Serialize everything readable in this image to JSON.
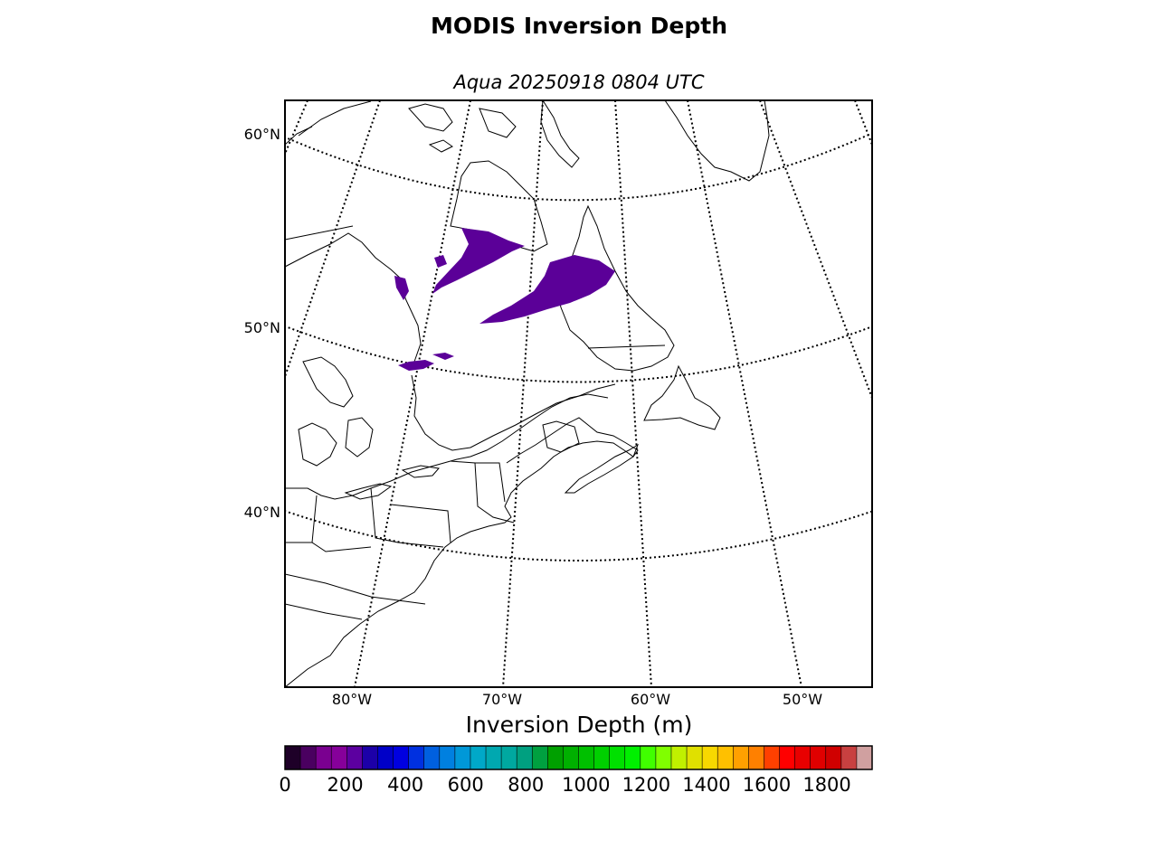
{
  "title": "MODIS Inversion Depth",
  "subtitle": "Aqua 20250918 0804 UTC",
  "map": {
    "lat_labels": [
      "60°N",
      "50°N",
      "40°N"
    ],
    "lon_labels": [
      "80°W",
      "70°W",
      "60°W",
      "50°W"
    ],
    "feature_color": "#5b0098"
  },
  "colorbar": {
    "label": "Inversion Depth (m)",
    "range": [
      0,
      1950
    ],
    "ticks": [
      "0",
      "200",
      "400",
      "600",
      "800",
      "1000",
      "1200",
      "1400",
      "1600",
      "1800"
    ],
    "colors": [
      "#1e0028",
      "#4a0060",
      "#7a0090",
      "#86009a",
      "#5c00a0",
      "#1c00a8",
      "#0000c8",
      "#0000e0",
      "#0030e0",
      "#0060e0",
      "#0080e0",
      "#0098d8",
      "#00a8c8",
      "#00a8b0",
      "#00a8a0",
      "#00a080",
      "#00a040",
      "#00a000",
      "#00b000",
      "#00c000",
      "#00d000",
      "#00e000",
      "#00f000",
      "#40ff00",
      "#80ff00",
      "#c0f000",
      "#e0e000",
      "#f8d800",
      "#ffc000",
      "#ffa000",
      "#ff8000",
      "#ff4000",
      "#ff0000",
      "#e80000",
      "#e00000",
      "#d00000",
      "#c84040",
      "#d0a0a0"
    ]
  }
}
